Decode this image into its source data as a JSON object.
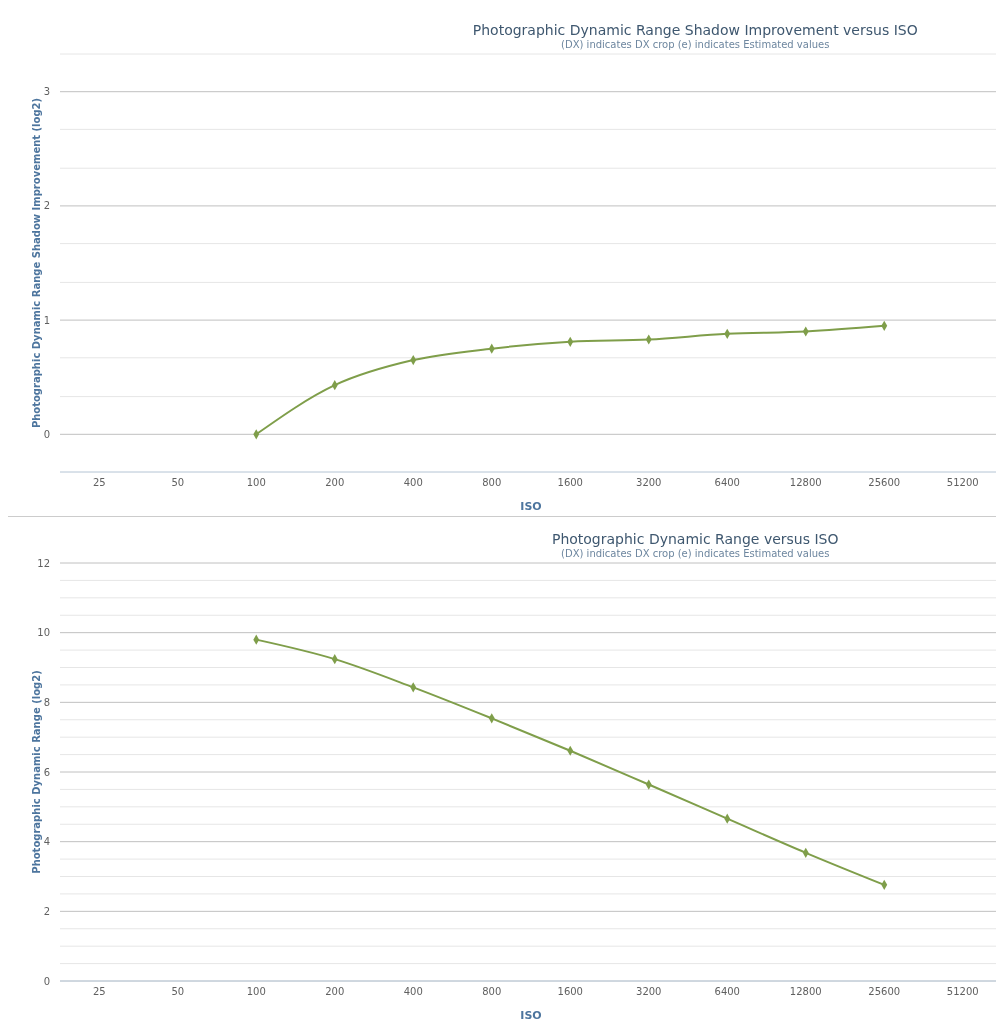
{
  "chart_data": [
    {
      "type": "line",
      "title": "Photographic Dynamic Range Shadow Improvement versus ISO",
      "subtitle": "(DX) indicates DX crop (e) indicates Estimated values",
      "xlabel": "ISO",
      "ylabel": "Photographic Dynamic Range Shadow Improvement (log2)",
      "categories": [
        "25",
        "50",
        "100",
        "200",
        "400",
        "800",
        "1600",
        "3200",
        "6400",
        "12800",
        "25600",
        "51200"
      ],
      "series": [
        {
          "color": "#7f9e4a",
          "values": [
            null,
            null,
            0,
            0.43,
            0.65,
            0.75,
            0.81,
            0.83,
            0.88,
            0.9,
            0.95,
            null
          ]
        }
      ],
      "ylim": [
        -0.33,
        3.33
      ],
      "yticks": [
        {
          "value": -0.33,
          "label": null
        },
        0,
        {
          "value": 0.33,
          "label": null
        },
        {
          "value": 0.67,
          "label": null
        },
        1,
        {
          "value": 1.33,
          "label": null
        },
        {
          "value": 1.67,
          "label": null
        },
        2,
        {
          "value": 2.33,
          "label": null
        },
        {
          "value": 2.67,
          "label": null
        },
        3,
        {
          "value": 3.33,
          "label": null
        }
      ],
      "grid": "y",
      "marker": "diamond",
      "line_style": "solid"
    },
    {
      "type": "line",
      "title": "Photographic Dynamic Range versus ISO",
      "subtitle": "(DX) indicates DX crop (e) indicates Estimated values",
      "xlabel": "ISO",
      "ylabel": "Photographic Dynamic Range (log2)",
      "categories": [
        "25",
        "50",
        "100",
        "200",
        "400",
        "800",
        "1600",
        "3200",
        "6400",
        "12800",
        "25600",
        "51200"
      ],
      "series": [
        {
          "color": "#7f9e4a",
          "values": [
            null,
            null,
            9.8,
            9.24,
            8.43,
            7.54,
            6.61,
            5.64,
            4.66,
            3.68,
            2.76,
            null
          ]
        }
      ],
      "ylim": [
        0,
        12
      ],
      "yticks": [
        0,
        {
          "value": 0.5,
          "label": null
        },
        {
          "value": 1,
          "label": null
        },
        {
          "value": 1.5,
          "label": null
        },
        2,
        {
          "value": 2.5,
          "label": null
        },
        {
          "value": 3,
          "label": null
        },
        {
          "value": 3.5,
          "label": null
        },
        4,
        {
          "value": 4.5,
          "label": null
        },
        {
          "value": 5,
          "label": null
        },
        {
          "value": 5.5,
          "label": null
        },
        6,
        {
          "value": 6.5,
          "label": null
        },
        {
          "value": 7,
          "label": null
        },
        {
          "value": 7.5,
          "label": null
        },
        8,
        {
          "value": 8.5,
          "label": null
        },
        {
          "value": 9,
          "label": null
        },
        {
          "value": 9.5,
          "label": null
        },
        10,
        {
          "value": 10.5,
          "label": null
        },
        {
          "value": 11,
          "label": null
        },
        {
          "value": 11.5,
          "label": null
        },
        12
      ],
      "grid": "y",
      "marker": "diamond",
      "line_style": "solid"
    }
  ]
}
